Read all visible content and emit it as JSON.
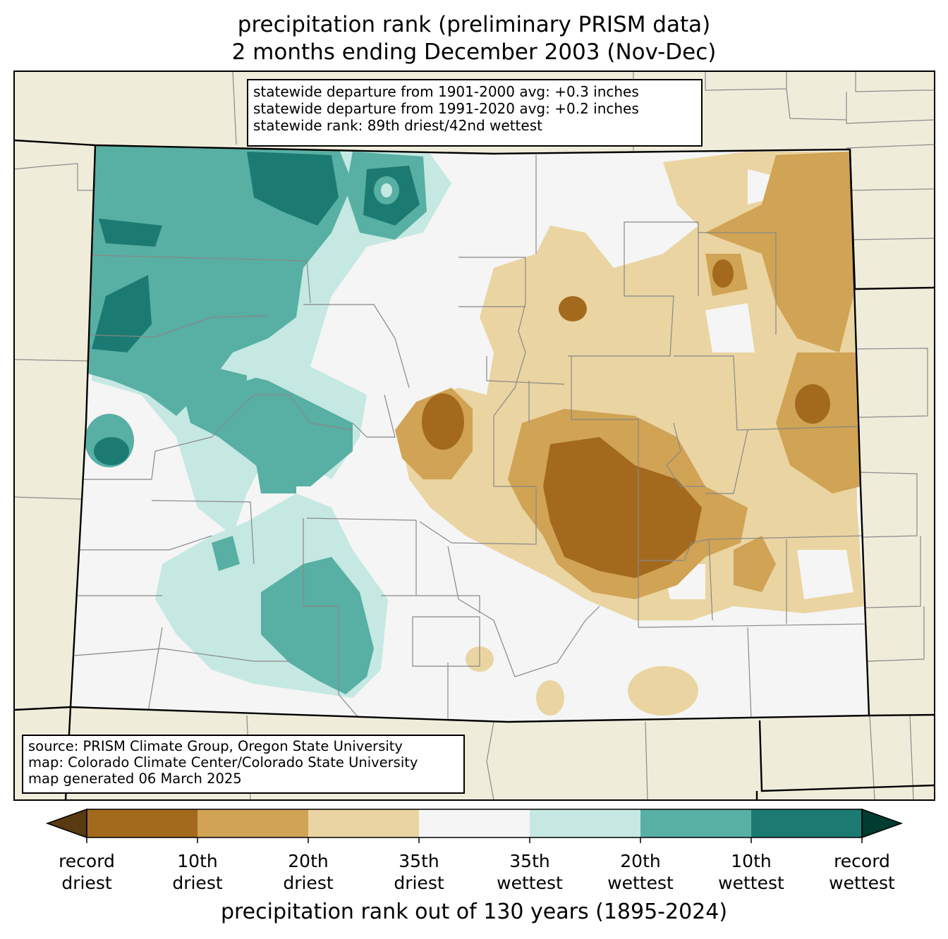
{
  "title_line1": "precipitation rank (preliminary PRISM data)",
  "title_line2": "2 months ending December 2003 (Nov-Dec)",
  "stats": {
    "line1": "statewide departure from 1901-2000 avg: +0.3 inches",
    "line2": "statewide departure from 1991-2020 avg: +0.2 inches",
    "line3": "statewide rank: 89th driest/42nd wettest"
  },
  "source": {
    "line1": "source: PRISM Climate Group, Oregon State University",
    "line2": "map: Colorado Climate Center/Colorado State University",
    "line3": "map generated 06 March 2025"
  },
  "colorbar": {
    "title": "precipitation rank out of 130 years (1895-2024)",
    "labels": [
      {
        "top": "record",
        "bottom": "driest"
      },
      {
        "top": "10th",
        "bottom": "driest"
      },
      {
        "top": "20th",
        "bottom": "driest"
      },
      {
        "top": "35th",
        "bottom": "driest"
      },
      {
        "top": "35th",
        "bottom": "wettest"
      },
      {
        "top": "20th",
        "bottom": "wettest"
      },
      {
        "top": "10th",
        "bottom": "wettest"
      },
      {
        "top": "record",
        "bottom": "wettest"
      }
    ],
    "colors": [
      "#a36a1e",
      "#d0a355",
      "#ead4a1",
      "#f4f5f4",
      "#c5e8e3",
      "#58afa4",
      "#1b7b72"
    ],
    "under_color": "#5a3a10",
    "over_color": "#003c30"
  },
  "background_color": "#efedda"
}
